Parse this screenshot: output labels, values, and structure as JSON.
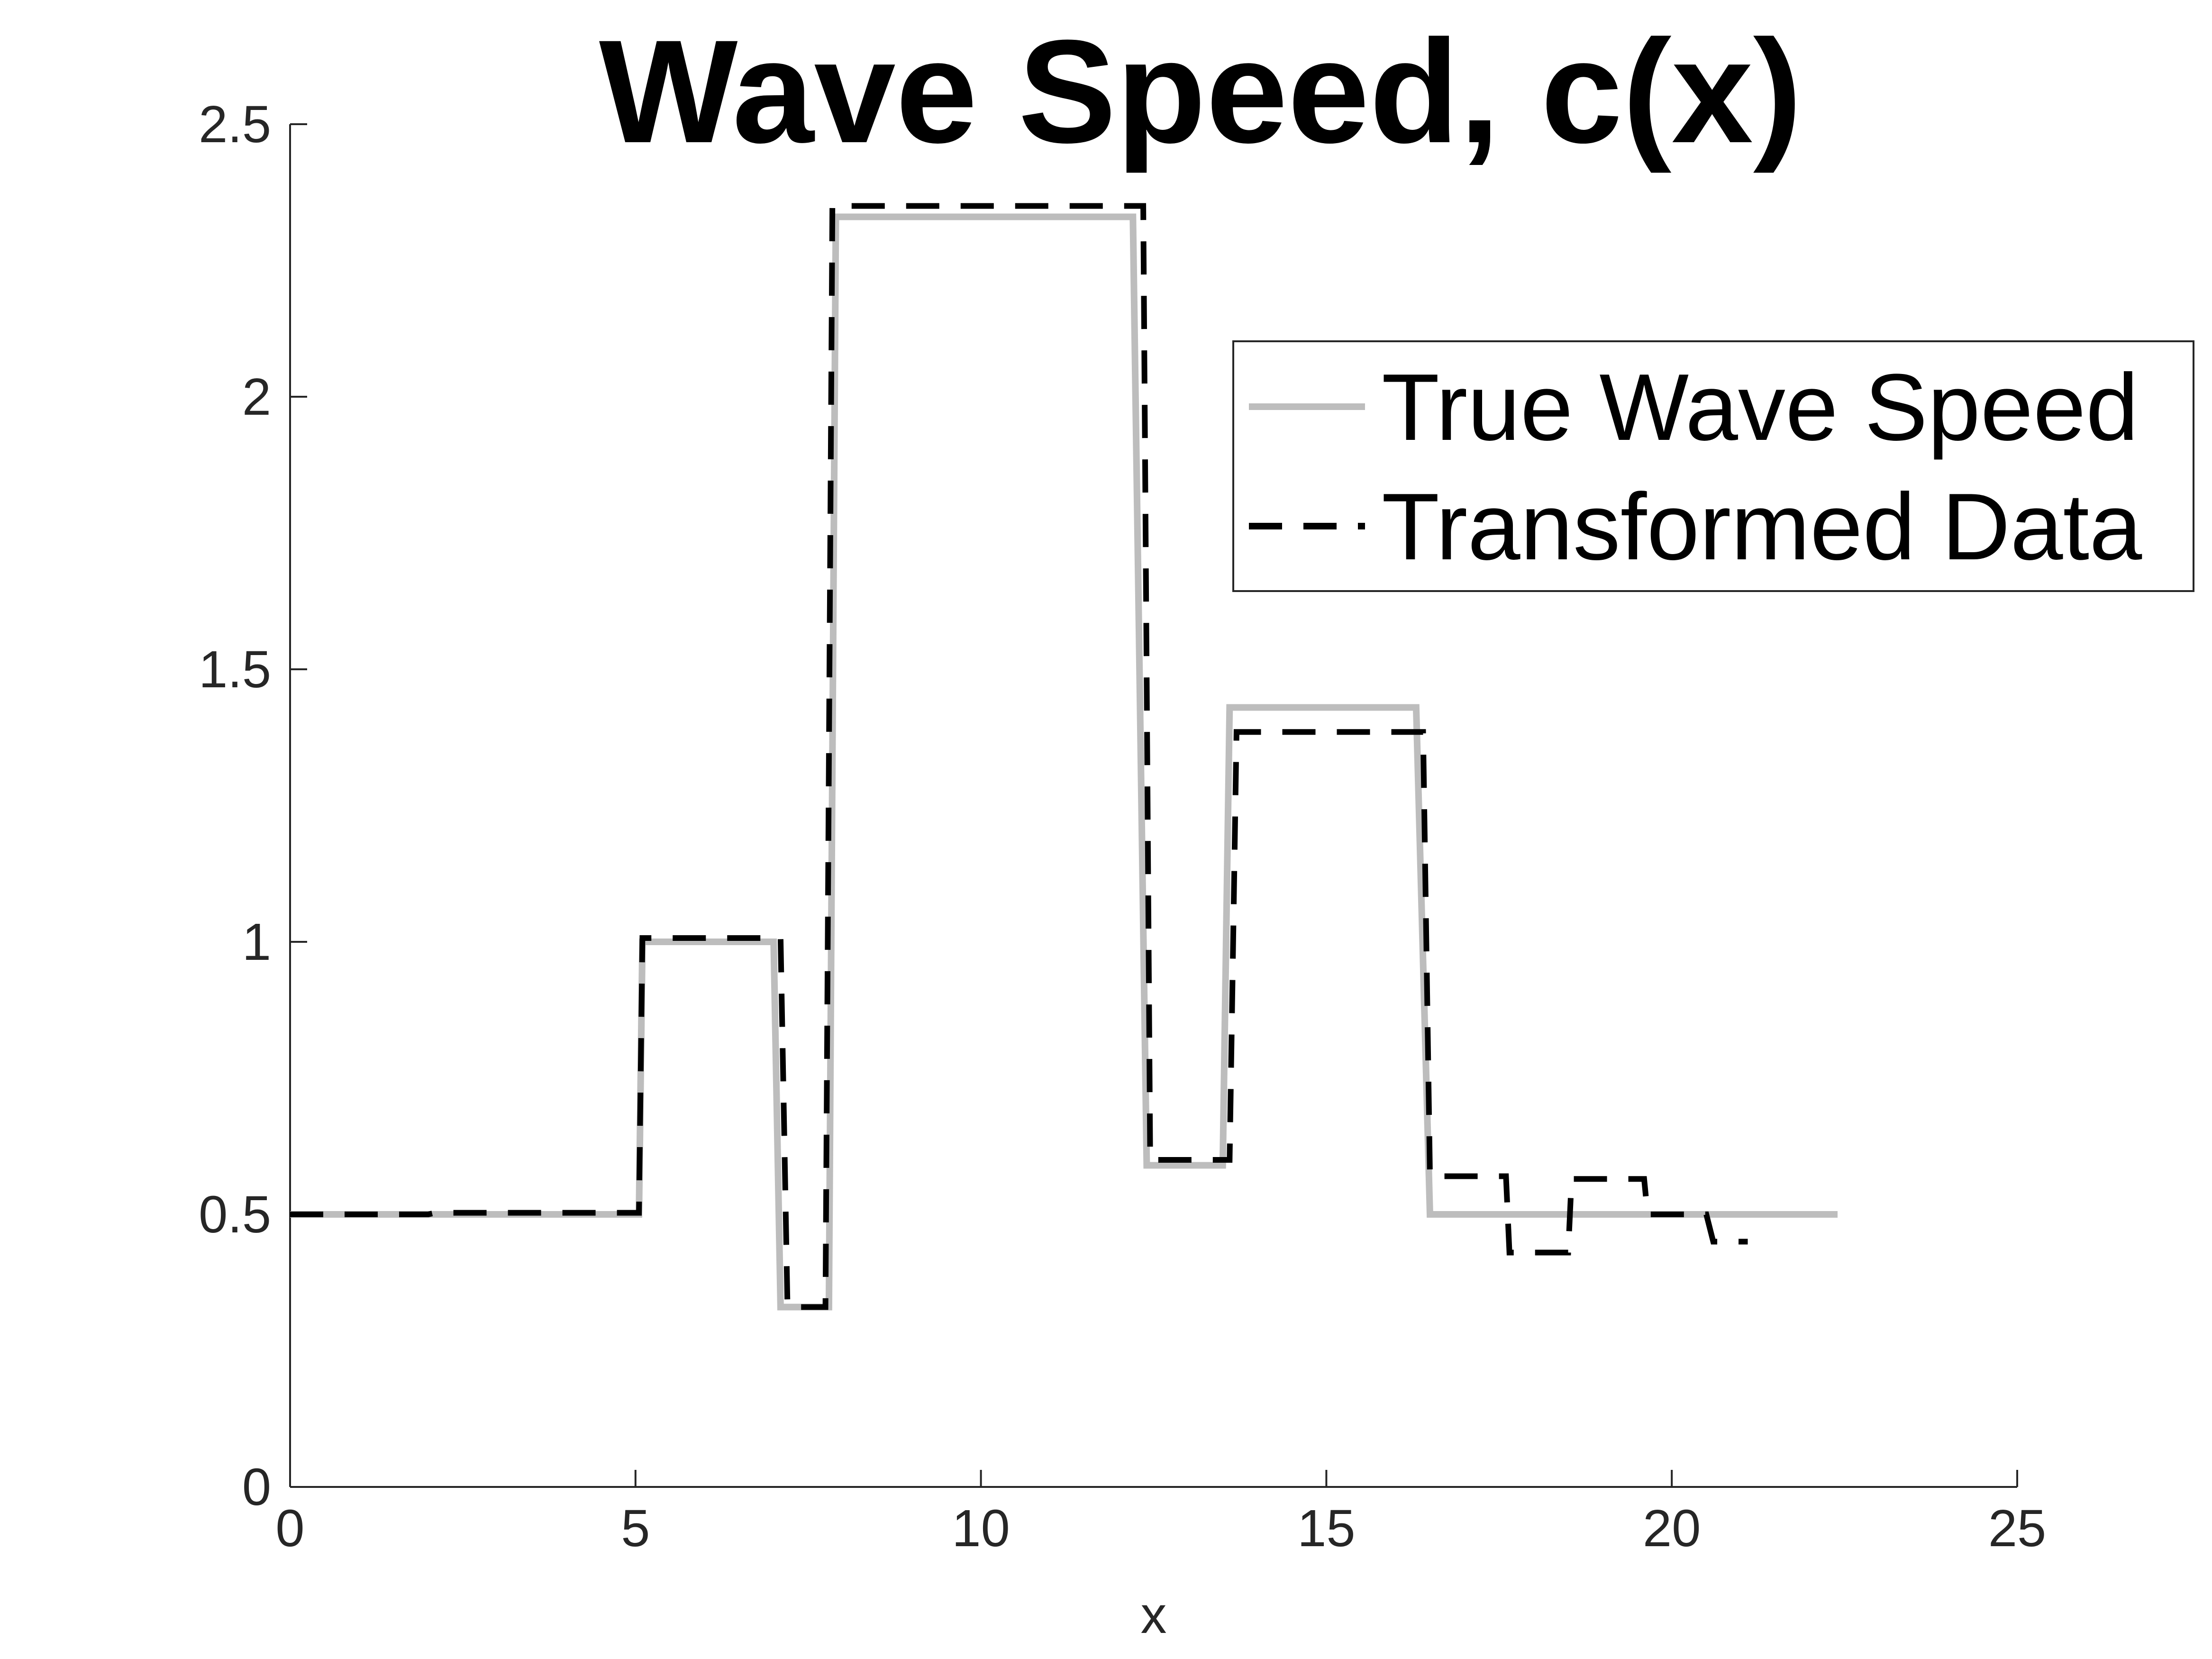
{
  "chart_data": {
    "type": "line",
    "title": "Wave Speed, c(x)",
    "xlabel": "x",
    "ylabel": "",
    "xlim": [
      0,
      25
    ],
    "ylim": [
      0,
      2.5
    ],
    "xticks": [
      0,
      5,
      10,
      15,
      20,
      25
    ],
    "yticks": [
      0,
      0.5,
      1,
      1.5,
      2,
      2.5
    ],
    "xtick_labels": [
      "0",
      "5",
      "10",
      "15",
      "20",
      "25"
    ],
    "ytick_labels": [
      "0",
      "0.5",
      "1",
      "1.5",
      "2",
      "2.5"
    ],
    "grid": false,
    "legend_position": "top-right",
    "series": [
      {
        "name": "True Wave Speed",
        "color": "#bdbdbd",
        "style": "solid",
        "x": [
          0,
          5.05,
          5.1,
          7.0,
          7.1,
          7.8,
          7.9,
          12.2,
          12.4,
          13.5,
          13.6,
          16.3,
          16.5,
          22.4
        ],
        "y": [
          0.5,
          0.5,
          1.0,
          1.0,
          0.33,
          0.33,
          2.33,
          2.33,
          0.59,
          0.59,
          1.43,
          1.43,
          0.5,
          0.5
        ]
      },
      {
        "name": "Transformed Data",
        "color": "#000000",
        "style": "dashed",
        "x": [
          0,
          2.0,
          2.1,
          5.05,
          5.1,
          7.1,
          7.2,
          7.75,
          7.85,
          12.35,
          12.45,
          13.6,
          13.7,
          16.4,
          16.5,
          17.6,
          17.65,
          18.5,
          18.55,
          19.6,
          19.65,
          20.5,
          20.6,
          21.1
        ],
        "y": [
          0.5,
          0.5,
          0.503,
          0.503,
          1.007,
          1.007,
          0.33,
          0.33,
          2.35,
          2.35,
          0.6,
          0.6,
          1.385,
          1.385,
          0.57,
          0.57,
          0.43,
          0.43,
          0.565,
          0.565,
          0.5,
          0.5,
          0.45,
          0.45
        ]
      }
    ]
  },
  "colors": {
    "axis": "#262626",
    "legend_border": "#262626"
  }
}
